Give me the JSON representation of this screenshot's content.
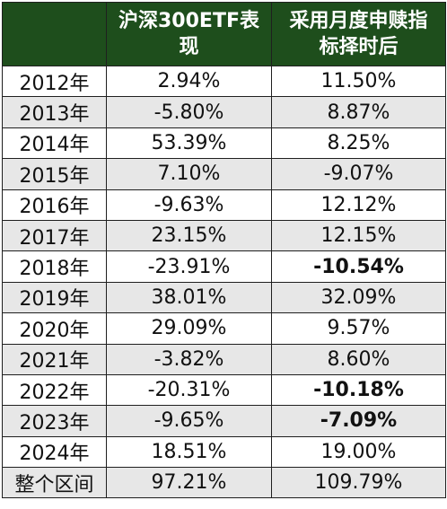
{
  "chart_data": {
    "type": "table",
    "columns": [
      "",
      "沪深300ETF表现",
      "采用月度申赎指标择时后"
    ],
    "header_lines": [
      [
        ""
      ],
      [
        "沪深300ETF表",
        "现"
      ],
      [
        "采用月度申赎指",
        "标择时后"
      ]
    ],
    "rows": [
      {
        "year": "2012年",
        "etf": "2.94%",
        "timed": "11.50%",
        "timed_bold": false
      },
      {
        "year": "2013年",
        "etf": "-5.80%",
        "timed": "8.87%",
        "timed_bold": false
      },
      {
        "year": "2014年",
        "etf": "53.39%",
        "timed": "8.25%",
        "timed_bold": false
      },
      {
        "year": "2015年",
        "etf": "7.10%",
        "timed": "-9.07%",
        "timed_bold": false
      },
      {
        "year": "2016年",
        "etf": "-9.63%",
        "timed": "12.12%",
        "timed_bold": false
      },
      {
        "year": "2017年",
        "etf": "23.15%",
        "timed": "12.15%",
        "timed_bold": false
      },
      {
        "year": "2018年",
        "etf": "-23.91%",
        "timed": "-10.54%",
        "timed_bold": true
      },
      {
        "year": "2019年",
        "etf": "38.01%",
        "timed": "32.09%",
        "timed_bold": false
      },
      {
        "year": "2020年",
        "etf": "29.09%",
        "timed": "9.57%",
        "timed_bold": false
      },
      {
        "year": "2021年",
        "etf": "-3.82%",
        "timed": "8.60%",
        "timed_bold": false
      },
      {
        "year": "2022年",
        "etf": "-20.31%",
        "timed": "-10.18%",
        "timed_bold": true
      },
      {
        "year": "2023年",
        "etf": "-9.65%",
        "timed": "-7.09%",
        "timed_bold": true
      },
      {
        "year": "2024年",
        "etf": "18.51%",
        "timed": "19.00%",
        "timed_bold": false
      },
      {
        "year": "整个区间",
        "etf": "97.21%",
        "timed": "109.79%",
        "timed_bold": false
      }
    ]
  },
  "colors": {
    "header_bg": "#1e4e1c",
    "header_text": "#ffffff",
    "alt_row_bg": "#e7e7e7",
    "row_bg": "#ffffff",
    "border": "#1f1f1f"
  }
}
